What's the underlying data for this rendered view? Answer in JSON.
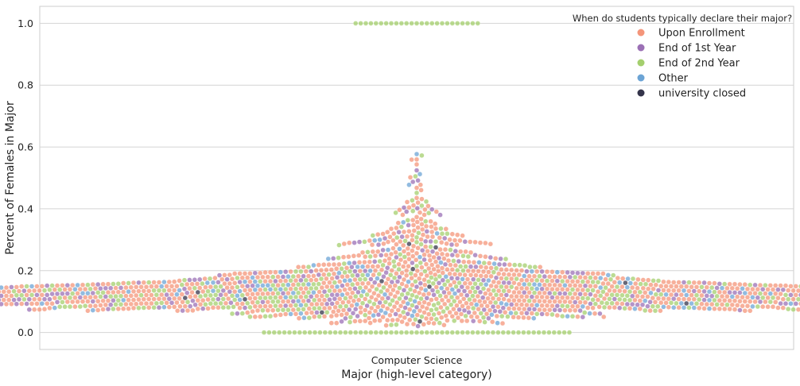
{
  "chart_data": {
    "type": "scatter",
    "subtype": "swarm",
    "xlabel": "Major (high-level category)",
    "ylabel": "Percent of Females in Major",
    "categories": [
      "Computer Science"
    ],
    "ylim": [
      -0.055,
      1.055
    ],
    "yticks": [
      0.0,
      0.2,
      0.4,
      0.6,
      0.8,
      1.0
    ],
    "ytick_labels": [
      "0.0",
      "0.2",
      "0.4",
      "0.6",
      "0.8",
      "1.0"
    ],
    "grid": true,
    "legend": {
      "title": "When do students typically declare their major?",
      "placement": "top-right",
      "entries": [
        {
          "label": "Upon Enrollment",
          "color": "#f4957a"
        },
        {
          "label": "End of 1st Year",
          "color": "#9b70b5"
        },
        {
          "label": "End of 2nd Year",
          "color": "#a4cf6e"
        },
        {
          "label": "Other",
          "color": "#6ca4d5"
        },
        {
          "label": "university closed",
          "color": "#34344a"
        }
      ]
    },
    "point_alpha": 0.75,
    "series_proportions": {
      "Upon Enrollment": 0.55,
      "End of 1st Year": 0.16,
      "End of 2nd Year": 0.2,
      "Other": 0.085,
      "university closed": 0.005
    },
    "distribution": [
      {
        "y_from": 0.0,
        "y_to": 0.0,
        "count": 61,
        "group": "End of 2nd Year"
      },
      {
        "y_from": 0.02,
        "y_to": 0.045,
        "count": 40
      },
      {
        "y_from": 0.045,
        "y_to": 0.07,
        "count": 110
      },
      {
        "y_from": 0.07,
        "y_to": 0.09,
        "count": 240
      },
      {
        "y_from": 0.09,
        "y_to": 0.105,
        "count": 300
      },
      {
        "y_from": 0.105,
        "y_to": 0.12,
        "count": 330
      },
      {
        "y_from": 0.12,
        "y_to": 0.135,
        "count": 300
      },
      {
        "y_from": 0.135,
        "y_to": 0.15,
        "count": 240
      },
      {
        "y_from": 0.15,
        "y_to": 0.17,
        "count": 190
      },
      {
        "y_from": 0.17,
        "y_to": 0.2,
        "count": 170
      },
      {
        "y_from": 0.2,
        "y_to": 0.22,
        "count": 65
      },
      {
        "y_from": 0.22,
        "y_to": 0.25,
        "count": 65
      },
      {
        "y_from": 0.25,
        "y_to": 0.3,
        "count": 75
      },
      {
        "y_from": 0.3,
        "y_to": 0.35,
        "count": 45
      },
      {
        "y_from": 0.35,
        "y_to": 0.4,
        "count": 22
      },
      {
        "y_from": 0.4,
        "y_to": 0.45,
        "count": 12
      },
      {
        "y_from": 0.45,
        "y_to": 0.5,
        "count": 7
      },
      {
        "y_from": 0.5,
        "y_to": 0.55,
        "count": 5
      },
      {
        "y_from": 0.55,
        "y_to": 0.58,
        "count": 4
      },
      {
        "y_from": 1.0,
        "y_to": 1.0,
        "count": 25,
        "group": "End of 2nd Year"
      }
    ]
  }
}
